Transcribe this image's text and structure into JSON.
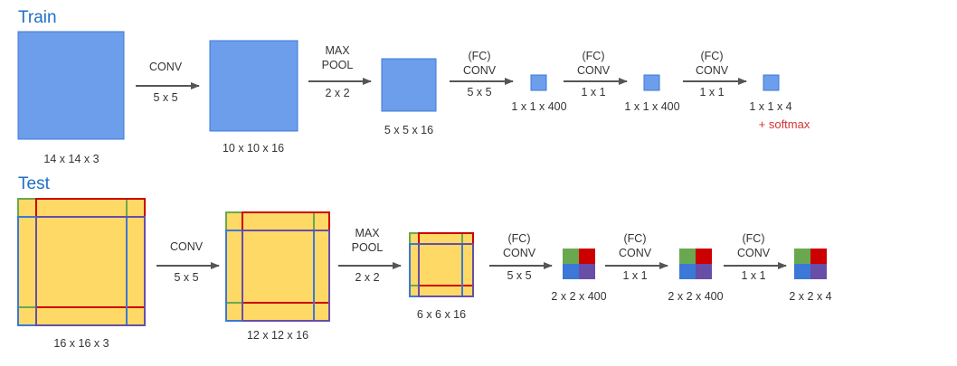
{
  "colors": {
    "train_box": "#6d9eeb",
    "train_box_stroke": "#3c78d8",
    "test_fill": "#ffd966",
    "border_green": "#6aa84f",
    "border_red": "#cc0000",
    "border_blue": "#3c78d8",
    "border_purple": "#674ea7",
    "arrow": "#555555",
    "header": "#1f6fc4",
    "label": "#333333",
    "softmax": "#d63333"
  },
  "train": {
    "title": "Train",
    "shapes": [
      "14 x 14 x 3",
      "10 x 10 x 16",
      "5 x 5 x 16",
      "1 x 1 x 400",
      "1 x 1 x 400",
      "1 x 1 x 4"
    ],
    "ops": [
      {
        "top": "CONV",
        "bottom": "5 x 5"
      },
      {
        "top1": "MAX",
        "top2": "POOL",
        "bottom": "2 x 2"
      },
      {
        "top1": "(FC)",
        "top2": "CONV",
        "bottom": "5 x 5"
      },
      {
        "top1": "(FC)",
        "top2": "CONV",
        "bottom": "1 x 1"
      },
      {
        "top1": "(FC)",
        "top2": "CONV",
        "bottom": "1 x 1"
      }
    ],
    "softmax": "+ softmax"
  },
  "test": {
    "title": "Test",
    "shapes": [
      "16 x 16 x 3",
      "12 x 12 x 16",
      "6 x 6 x 16",
      "2 x 2 x 400",
      "2 x 2 x 400",
      "2 x 2 x 4"
    ],
    "ops": [
      {
        "top": "CONV",
        "bottom": "5 x 5"
      },
      {
        "top1": "MAX",
        "top2": "POOL",
        "bottom": "2 x 2"
      },
      {
        "top1": "(FC)",
        "top2": "CONV",
        "bottom": "5 x 5"
      },
      {
        "top1": "(FC)",
        "top2": "CONV",
        "bottom": "1 x 1"
      },
      {
        "top1": "(FC)",
        "top2": "CONV",
        "bottom": "1 x 1"
      }
    ]
  }
}
